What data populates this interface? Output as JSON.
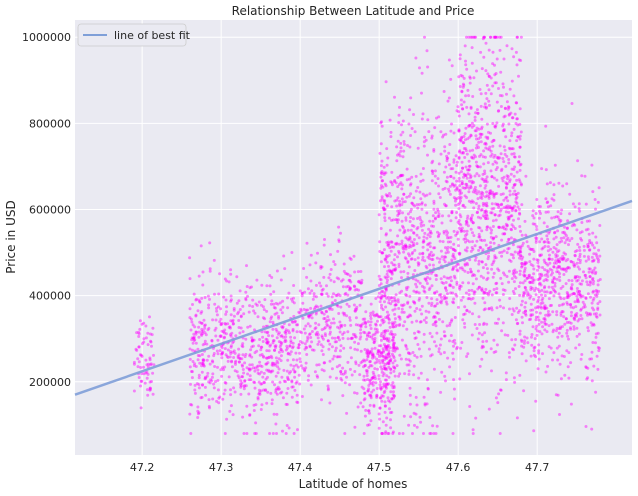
{
  "chart_data": {
    "type": "scatter",
    "title": "Relationship Between Latitude and Price",
    "xlabel": "Latitude of homes",
    "ylabel": "Price in USD",
    "xlim": [
      47.115,
      47.82
    ],
    "ylim": [
      30000,
      1040000
    ],
    "x_ticks": [
      47.2,
      47.3,
      47.4,
      47.5,
      47.6,
      47.7
    ],
    "x_tick_labels": [
      "47.2",
      "47.3",
      "47.4",
      "47.5",
      "47.6",
      "47.7"
    ],
    "y_ticks": [
      200000,
      400000,
      600000,
      800000,
      1000000
    ],
    "y_tick_labels": [
      "200000",
      "400000",
      "600000",
      "800000",
      "1000000"
    ],
    "grid": true,
    "legend_position": "top-left",
    "legend": [
      "line of best fit"
    ],
    "colors": {
      "background": "#eaeaf2",
      "grid": "#ffffff",
      "points": "#ff00ff",
      "fit_line": "#7f9fd8"
    },
    "fit_line": {
      "name": "line of best fit",
      "x": [
        47.115,
        47.82
      ],
      "y": [
        170000,
        620000
      ]
    },
    "point_clusters": [
      {
        "x_range": [
          47.19,
          47.215
        ],
        "y_center": 260000,
        "y_spread": 50000,
        "count": 70
      },
      {
        "x_range": [
          47.26,
          47.4
        ],
        "y_center": 270000,
        "y_spread": 80000,
        "count": 700
      },
      {
        "x_range": [
          47.4,
          47.48
        ],
        "y_center": 330000,
        "y_spread": 90000,
        "count": 350
      },
      {
        "x_range": [
          47.48,
          47.52
        ],
        "y_center": 240000,
        "y_spread": 70000,
        "count": 300
      },
      {
        "x_range": [
          47.5,
          47.6
        ],
        "y_center": 480000,
        "y_spread": 180000,
        "count": 900
      },
      {
        "x_range": [
          47.6,
          47.68
        ],
        "y_center": 620000,
        "y_spread": 190000,
        "count": 900
      },
      {
        "x_range": [
          47.68,
          47.78
        ],
        "y_center": 430000,
        "y_spread": 110000,
        "count": 700
      }
    ]
  }
}
